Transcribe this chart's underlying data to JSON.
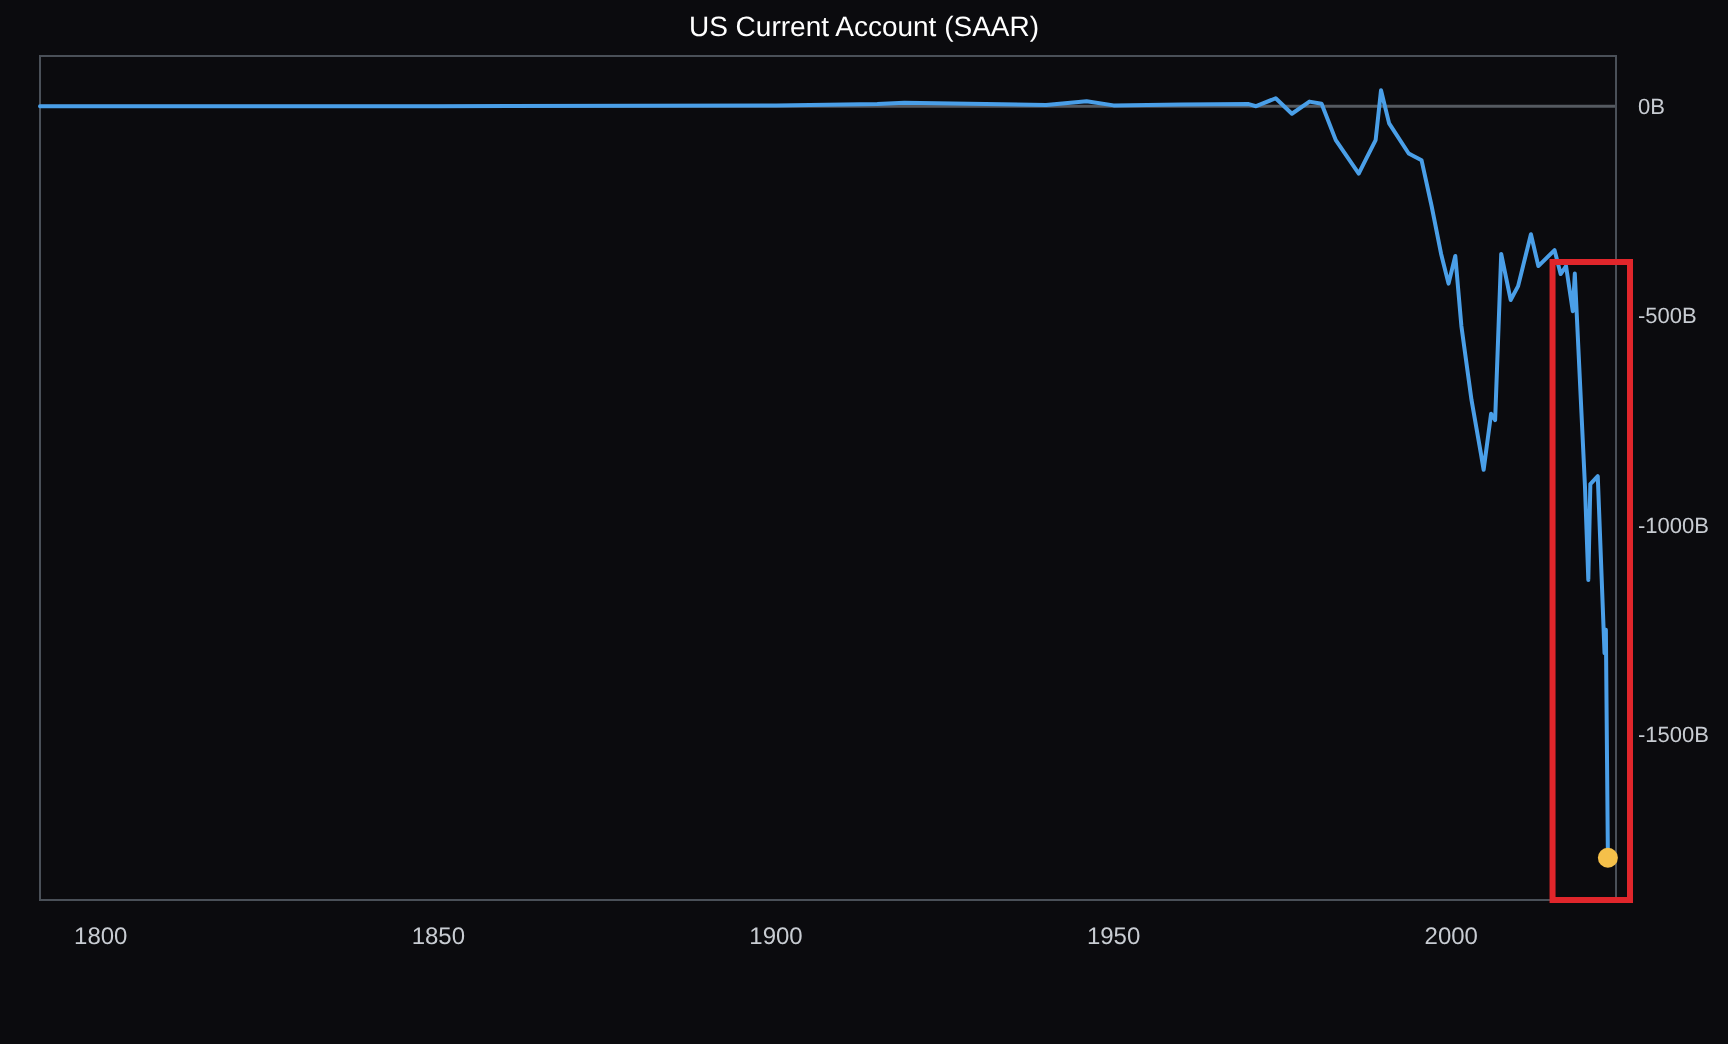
{
  "chart_data": {
    "type": "line",
    "title": "US Current Account (SAAR)",
    "xlim": [
      1791,
      2024.4
    ],
    "xticks": [
      1800,
      1850,
      1900,
      1950,
      2000
    ],
    "ylim": [
      -1897,
      120
    ],
    "yticks": [
      {
        "value": 0,
        "label": "0B"
      },
      {
        "value": -500,
        "label": "-500B"
      },
      {
        "value": -1000,
        "label": "-1000B"
      },
      {
        "value": -1500,
        "label": "-1500B"
      }
    ],
    "grid": false,
    "ref_lines": [
      {
        "axis": "y",
        "value": 0,
        "color": "#555a60"
      }
    ],
    "series": [
      {
        "color": "#4a9fe8",
        "x": [
          1791,
          1850,
          1900,
          1915,
          1919,
          1940,
          1946,
          1950,
          1960,
          1970,
          1971.1,
          1974,
          1976.4,
          1979,
          1980.8,
          1982.9,
          1986.3,
          1987.3,
          1988.8,
          1989.6,
          1990.8,
          1993.7,
          1995.6,
          1997.1,
          1998.5,
          1999.6,
          2000.6,
          2001.5,
          2003,
          2004.4,
          2004.8,
          2005.9,
          2006.5,
          2007.4,
          2008.8,
          2009.9,
          2011.8,
          2012.9,
          2015.3,
          2016.2,
          2017.0,
          2018.0,
          2018.3,
          2019.8,
          2020.3,
          2020.6,
          2021.7,
          2022.7,
          2022.9,
          2023.2
        ],
        "values": [
          0,
          0,
          2,
          5,
          8,
          3,
          12,
          2,
          4,
          5,
          0,
          19,
          -18,
          11,
          6,
          -81,
          -161,
          -129,
          -81,
          38,
          -41,
          -113,
          -129,
          -239,
          -353,
          -424,
          -358,
          -525,
          -702,
          -831,
          -869,
          -735,
          -750,
          -353,
          -463,
          -430,
          -306,
          -382,
          -344,
          -401,
          -382,
          -490,
          -400,
          -907,
          -1132,
          -903,
          -884,
          -1307,
          -1251,
          -1796
        ]
      },
      {
        "type": "scatter",
        "color": "#f5c04a",
        "marker": "circle",
        "x": [
          2023.2
        ],
        "values": [
          -1796
        ]
      }
    ]
  }
}
